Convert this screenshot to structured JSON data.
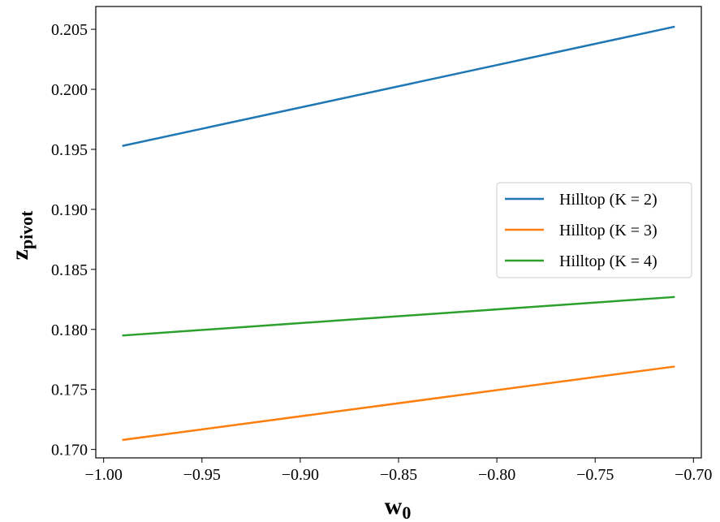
{
  "chart_data": {
    "type": "line",
    "title": "",
    "xlabel": {
      "base": "w",
      "sub": "0"
    },
    "ylabel": {
      "base": "z",
      "sub": "pivot"
    },
    "xlim": [
      -1.004,
      -0.696
    ],
    "ylim": [
      0.1693,
      0.2069
    ],
    "xticks": [
      -1.0,
      -0.95,
      -0.9,
      -0.85,
      -0.8,
      -0.75,
      -0.7
    ],
    "xtick_labels": [
      "−1.00",
      "−0.95",
      "−0.90",
      "−0.85",
      "−0.80",
      "−0.75",
      "−0.70"
    ],
    "yticks": [
      0.17,
      0.175,
      0.18,
      0.185,
      0.19,
      0.195,
      0.2,
      0.205
    ],
    "ytick_labels": [
      "0.170",
      "0.175",
      "0.180",
      "0.185",
      "0.190",
      "0.195",
      "0.200",
      "0.205"
    ],
    "grid": false,
    "legend_position": "center-right",
    "series": [
      {
        "name": "Hilltop (K = 2)",
        "color": "#1f77b4",
        "x": [
          -0.99,
          -0.71
        ],
        "y": [
          0.1953,
          0.2052
        ]
      },
      {
        "name": "Hilltop (K = 3)",
        "color": "#ff7f0e",
        "x": [
          -0.99,
          -0.71
        ],
        "y": [
          0.1708,
          0.1769
        ]
      },
      {
        "name": "Hilltop (K = 4)",
        "color": "#2ca02c",
        "x": [
          -0.99,
          -0.71
        ],
        "y": [
          0.1795,
          0.1827
        ]
      }
    ]
  }
}
